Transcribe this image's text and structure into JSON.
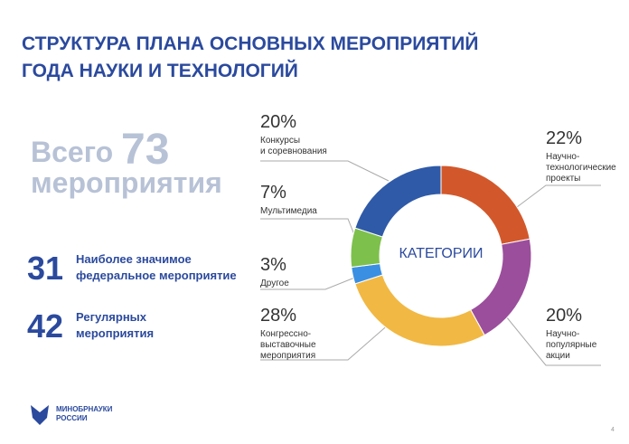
{
  "title": "СТРУКТУРА ПЛАНА ОСНОВНЫХ МЕРОПРИЯТИЙ\nГОДА НАУКИ И ТЕХНОЛОГИЙ",
  "total": {
    "prefix": "Всего",
    "number": 73,
    "suffix": "мероприятия"
  },
  "stats": [
    {
      "number": 31,
      "label": "Наиболее значимое\nфедеральное мероприятие"
    },
    {
      "number": 42,
      "label": "Регулярных\nмероприятия"
    }
  ],
  "logo": "МИНОБРНАУКИ\nРОССИИ",
  "page_number": "4",
  "chart_data": {
    "type": "pie",
    "center_label": "КАТЕГОРИИ",
    "categories": [
      "Научно-\nтехнологические\nпроекты",
      "Научно-\nпопулярные\nакции",
      "Конгрессно-\nвыставочные\nмероприятия",
      "Другое",
      "Мультимедиа",
      "Конкурсы\nи соревнования"
    ],
    "values": [
      22,
      20,
      28,
      3,
      7,
      20
    ],
    "value_labels": [
      "22%",
      "20%",
      "28%",
      "3%",
      "7%",
      "20%"
    ],
    "colors": [
      "#d2582b",
      "#9b4e9c",
      "#f1b843",
      "#3b8fe2",
      "#7dc04c",
      "#2f5aa8"
    ]
  }
}
